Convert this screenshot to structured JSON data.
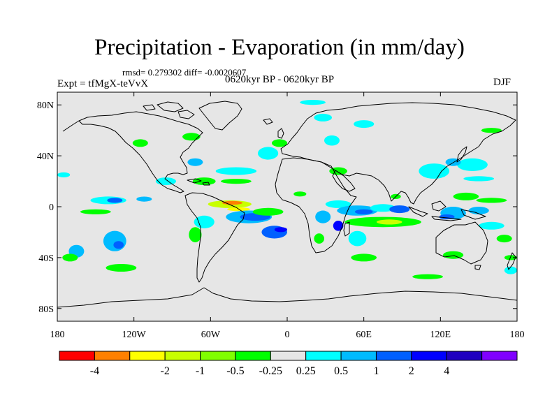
{
  "header": {
    "title": "Precipitation - Evaporation (in mm/day)",
    "stats": "rmsd= 0.279302 diff= -0.0020607",
    "experiment": "Expt = tfMgX-teVvX",
    "period": "0620kyr BP - 0620kyr BP",
    "season": "DJF"
  },
  "map": {
    "projection": "cylindrical-equidistant",
    "lon_range": [
      -180,
      180
    ],
    "lat_range": [
      -90,
      90
    ],
    "background_color": "#e6e6e6",
    "coastline_color": "#000000",
    "y_ticks": [
      {
        "lat": 80,
        "label": "80N"
      },
      {
        "lat": 40,
        "label": "40N"
      },
      {
        "lat": 0,
        "label": "0"
      },
      {
        "lat": -40,
        "label": "40S"
      },
      {
        "lat": -80,
        "label": "80S"
      }
    ],
    "x_ticks": [
      {
        "lon": -180,
        "label": "180"
      },
      {
        "lon": -120,
        "label": "120W"
      },
      {
        "lon": -60,
        "label": "60W"
      },
      {
        "lon": 0,
        "label": "0"
      },
      {
        "lon": 60,
        "label": "60E"
      },
      {
        "lon": 120,
        "label": "120E"
      },
      {
        "lon": 180,
        "label": "180"
      }
    ]
  },
  "colorbar": {
    "colors": [
      "#ff0000",
      "#ff8000",
      "#ffff00",
      "#c8ff00",
      "#80ff00",
      "#00ff00",
      "#e6e6e6",
      "#00ffff",
      "#00bbff",
      "#0060ff",
      "#0000ff",
      "#2000c0",
      "#8000ff"
    ],
    "labels": [
      "-4",
      "-2",
      "-1",
      "-0.5",
      "-0.25",
      "0.25",
      "0.5",
      "1",
      "2",
      "4"
    ],
    "label_boundaries": [
      1,
      3,
      4,
      5,
      6,
      7,
      8,
      9,
      10,
      11
    ]
  },
  "field_regions": [
    {
      "lon": -140,
      "lat": 5,
      "rx": 14,
      "ry": 3,
      "color": "#00ffff"
    },
    {
      "lon": -135,
      "lat": 5,
      "rx": 6,
      "ry": 2,
      "color": "#0060ff"
    },
    {
      "lon": -112,
      "lat": 6,
      "rx": 6,
      "ry": 2,
      "color": "#00bbff"
    },
    {
      "lon": -150,
      "lat": -4,
      "rx": 12,
      "ry": 2,
      "color": "#00ff00"
    },
    {
      "lon": -45,
      "lat": 2,
      "rx": 17,
      "ry": 3,
      "color": "#c8ff00"
    },
    {
      "lon": -43,
      "lat": 3,
      "rx": 8,
      "ry": 1.5,
      "color": "#ff8000"
    },
    {
      "lon": -38,
      "lat": -2,
      "rx": 9,
      "ry": 1.5,
      "color": "#ffff00"
    },
    {
      "lon": -30,
      "lat": -8,
      "rx": 18,
      "ry": 5,
      "color": "#00bbff"
    },
    {
      "lon": -25,
      "lat": -8,
      "rx": 12,
      "ry": 3,
      "color": "#0060ff"
    },
    {
      "lon": -65,
      "lat": -12,
      "rx": 8,
      "ry": 5,
      "color": "#00ffff"
    },
    {
      "lon": -72,
      "lat": -22,
      "rx": 5,
      "ry": 6,
      "color": "#00ff00"
    },
    {
      "lon": -10,
      "lat": -20,
      "rx": 10,
      "ry": 5,
      "color": "#0060ff"
    },
    {
      "lon": -5,
      "lat": -18,
      "rx": 5,
      "ry": 2,
      "color": "#0000ff"
    },
    {
      "lon": -15,
      "lat": -4,
      "rx": 12,
      "ry": 3,
      "color": "#00ff00"
    },
    {
      "lon": -135,
      "lat": -27,
      "rx": 9,
      "ry": 8,
      "color": "#00bbff"
    },
    {
      "lon": -132,
      "lat": -30,
      "rx": 4,
      "ry": 3,
      "color": "#0060ff"
    },
    {
      "lon": -165,
      "lat": -35,
      "rx": 6,
      "ry": 5,
      "color": "#00bbff"
    },
    {
      "lon": -170,
      "lat": -40,
      "rx": 6,
      "ry": 3,
      "color": "#00ff00"
    },
    {
      "lon": -130,
      "lat": -48,
      "rx": 12,
      "ry": 3,
      "color": "#00ff00"
    },
    {
      "lon": -65,
      "lat": 20,
      "rx": 9,
      "ry": 3,
      "color": "#00ff00"
    },
    {
      "lon": -95,
      "lat": 20,
      "rx": 8,
      "ry": 3,
      "color": "#00ffff"
    },
    {
      "lon": -72,
      "lat": 35,
      "rx": 6,
      "ry": 3,
      "color": "#00bbff"
    },
    {
      "lon": -40,
      "lat": 28,
      "rx": 16,
      "ry": 3,
      "color": "#00ffff"
    },
    {
      "lon": -40,
      "lat": 20,
      "rx": 12,
      "ry": 2,
      "color": "#00ff00"
    },
    {
      "lon": -15,
      "lat": 42,
      "rx": 8,
      "ry": 5,
      "color": "#00ffff"
    },
    {
      "lon": -6,
      "lat": 50,
      "rx": 6,
      "ry": 3,
      "color": "#00ff00"
    },
    {
      "lon": 20,
      "lat": 82,
      "rx": 10,
      "ry": 2,
      "color": "#00ffff"
    },
    {
      "lon": 28,
      "lat": 70,
      "rx": 7,
      "ry": 3,
      "color": "#00ffff"
    },
    {
      "lon": 35,
      "lat": 52,
      "rx": 6,
      "ry": 4,
      "color": "#00ffff"
    },
    {
      "lon": 60,
      "lat": 65,
      "rx": 8,
      "ry": 3,
      "color": "#00ffff"
    },
    {
      "lon": 10,
      "lat": 10,
      "rx": 5,
      "ry": 2,
      "color": "#00ff00"
    },
    {
      "lon": 40,
      "lat": 2,
      "rx": 10,
      "ry": 3,
      "color": "#00ffff"
    },
    {
      "lon": 55,
      "lat": -3,
      "rx": 16,
      "ry": 4,
      "color": "#00bbff"
    },
    {
      "lon": 60,
      "lat": -4,
      "rx": 7,
      "ry": 2,
      "color": "#0060ff"
    },
    {
      "lon": 75,
      "lat": -1,
      "rx": 10,
      "ry": 3,
      "color": "#00ffff"
    },
    {
      "lon": 88,
      "lat": -2,
      "rx": 8,
      "ry": 3,
      "color": "#0060ff"
    },
    {
      "lon": 85,
      "lat": 8,
      "rx": 4,
      "ry": 2,
      "color": "#00ff00"
    },
    {
      "lon": 75,
      "lat": -12,
      "rx": 30,
      "ry": 4,
      "color": "#00ff00"
    },
    {
      "lon": 80,
      "lat": -12,
      "rx": 10,
      "ry": 2,
      "color": "#c8ff00"
    },
    {
      "lon": 28,
      "lat": -8,
      "rx": 6,
      "ry": 5,
      "color": "#00bbff"
    },
    {
      "lon": 40,
      "lat": -15,
      "rx": 4,
      "ry": 4,
      "color": "#0000ff"
    },
    {
      "lon": 55,
      "lat": -25,
      "rx": 7,
      "ry": 6,
      "color": "#00ffff"
    },
    {
      "lon": 25,
      "lat": -25,
      "rx": 4,
      "ry": 4,
      "color": "#00ff00"
    },
    {
      "lon": 60,
      "lat": -40,
      "rx": 10,
      "ry": 3,
      "color": "#00ff00"
    },
    {
      "lon": 40,
      "lat": 28,
      "rx": 7,
      "ry": 3,
      "color": "#00ff00"
    },
    {
      "lon": 115,
      "lat": 28,
      "rx": 12,
      "ry": 6,
      "color": "#00ffff"
    },
    {
      "lon": 145,
      "lat": 33,
      "rx": 12,
      "ry": 5,
      "color": "#00ffff"
    },
    {
      "lon": 130,
      "lat": 35,
      "rx": 6,
      "ry": 3,
      "color": "#00bbff"
    },
    {
      "lon": 150,
      "lat": 22,
      "rx": 12,
      "ry": 2,
      "color": "#00ffff"
    },
    {
      "lon": 160,
      "lat": 60,
      "rx": 8,
      "ry": 2,
      "color": "#00ff00"
    },
    {
      "lon": 140,
      "lat": 8,
      "rx": 10,
      "ry": 3,
      "color": "#00ff00"
    },
    {
      "lon": 160,
      "lat": 5,
      "rx": 12,
      "ry": 2,
      "color": "#00ff00"
    },
    {
      "lon": 130,
      "lat": -5,
      "rx": 10,
      "ry": 5,
      "color": "#00bbff"
    },
    {
      "lon": 125,
      "lat": -8,
      "rx": 6,
      "ry": 2,
      "color": "#0060ff"
    },
    {
      "lon": 150,
      "lat": -3,
      "rx": 8,
      "ry": 3,
      "color": "#00bbff"
    },
    {
      "lon": 160,
      "lat": -15,
      "rx": 10,
      "ry": 3,
      "color": "#00ffff"
    },
    {
      "lon": 170,
      "lat": -25,
      "rx": 6,
      "ry": 3,
      "color": "#00ff00"
    },
    {
      "lon": 130,
      "lat": -38,
      "rx": 8,
      "ry": 3,
      "color": "#00ff00"
    },
    {
      "lon": 110,
      "lat": -55,
      "rx": 12,
      "ry": 2,
      "color": "#00ff00"
    },
    {
      "lon": 175,
      "lat": -40,
      "rx": 5,
      "ry": 2,
      "color": "#00ff00"
    },
    {
      "lon": 175,
      "lat": -50,
      "rx": 5,
      "ry": 3,
      "color": "#00ffff"
    },
    {
      "lon": -175,
      "lat": 25,
      "rx": 5,
      "ry": 2,
      "color": "#00ffff"
    },
    {
      "lon": -115,
      "lat": 50,
      "rx": 6,
      "ry": 3,
      "color": "#00ff00"
    },
    {
      "lon": -75,
      "lat": 55,
      "rx": 7,
      "ry": 3,
      "color": "#00ff00"
    }
  ]
}
